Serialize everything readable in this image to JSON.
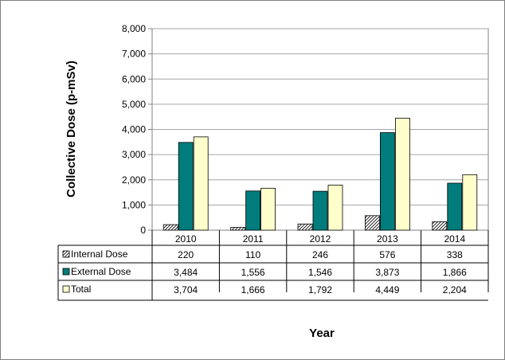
{
  "chart_data": {
    "type": "bar",
    "title": "",
    "xlabel": "Year",
    "ylabel": "Collective Dose (p-mSv)",
    "ylim": [
      0,
      8000
    ],
    "yticks": [
      "0",
      "1,000",
      "2,000",
      "3,000",
      "4,000",
      "5,000",
      "6,000",
      "7,000",
      "8,000"
    ],
    "categories": [
      "2010",
      "2011",
      "2012",
      "2013",
      "2014"
    ],
    "grid": true,
    "legend": "data-table-left",
    "series": [
      {
        "name": "Internal Dose",
        "values": [
          220,
          110,
          246,
          576,
          338
        ],
        "labels": [
          "220",
          "110",
          "246",
          "576",
          "338"
        ],
        "color": "#ffffff",
        "pattern": "hatch"
      },
      {
        "name": "External Dose",
        "values": [
          3484,
          1556,
          1546,
          3873,
          1866
        ],
        "labels": [
          "3,484",
          "1,556",
          "1,546",
          "3,873",
          "1,866"
        ],
        "color": "#007C7C"
      },
      {
        "name": "Total",
        "values": [
          3704,
          1666,
          1792,
          4449,
          2204
        ],
        "labels": [
          "3,704",
          "1,666",
          "1,792",
          "4,449",
          "2,204"
        ],
        "color": "#FFFFCC"
      }
    ]
  }
}
